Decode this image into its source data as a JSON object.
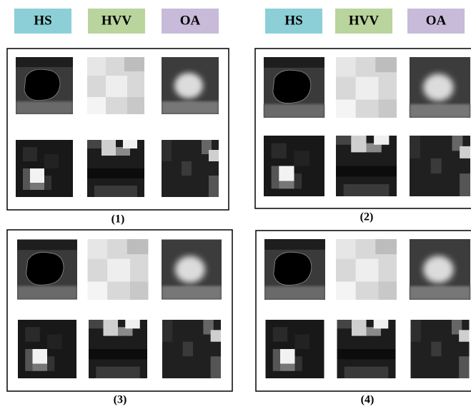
{
  "headers": [
    [
      "HS",
      "HVV",
      "OA"
    ],
    [
      "HS",
      "HVV",
      "OA"
    ]
  ],
  "panels": [
    {
      "caption": "(1)"
    },
    {
      "caption": "(2)"
    },
    {
      "caption": "(3)"
    },
    {
      "caption": "(4)"
    }
  ]
}
